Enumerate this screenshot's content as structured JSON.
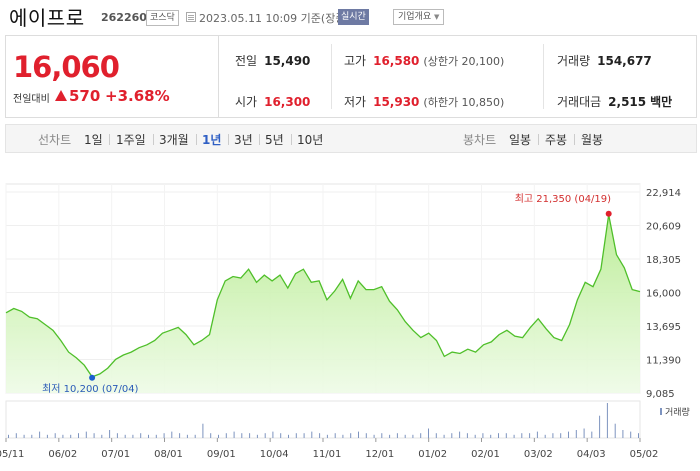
{
  "header": {
    "name": "에이프로",
    "code": "262260",
    "market": "코스닥",
    "datetime": "2023.05.11 10:09 기준(장중)",
    "realtime": "실시간",
    "company_info": "기업개요"
  },
  "price": {
    "current": "16,060",
    "change_label": "전일대비",
    "change_value": "570",
    "change_pct": "+3.68%",
    "up_color": "#e0202d"
  },
  "stats": {
    "prev_close_label": "전일",
    "prev_close": "15,490",
    "high_label": "고가",
    "high": "16,580",
    "upper_limit": "(상한가 20,100)",
    "volume_label": "거래량",
    "volume": "154,677",
    "open_label": "시가",
    "open": "16,300",
    "low_label": "저가",
    "low": "15,930",
    "lower_limit": "(하한가 10,850)",
    "amount_label": "거래대금",
    "amount": "2,515",
    "amount_unit": "백만"
  },
  "tabs": {
    "line_chart": "선차트",
    "periods": [
      "1일",
      "1주일",
      "3개월",
      "1년",
      "3년",
      "5년",
      "10년"
    ],
    "active_period": "1년",
    "candle_chart": "봉차트",
    "candles": [
      "일봉",
      "주봉",
      "월봉"
    ]
  },
  "chart_data": {
    "type": "area",
    "y_ticks": [
      "22,914",
      "20,609",
      "18,305",
      "16,000",
      "13,695",
      "11,390",
      "9,085"
    ],
    "ylim": [
      9085,
      22914
    ],
    "x_labels": [
      "05/11",
      "06/02",
      "07/01",
      "08/01",
      "09/01",
      "10/04",
      "11/01",
      "12/01",
      "01/02",
      "02/01",
      "03/02",
      "04/03",
      "05/02"
    ],
    "series": [
      {
        "values": [
          14600,
          14900,
          14700,
          14300,
          14200,
          13800,
          13400,
          12700,
          11900,
          11500,
          11000,
          10200,
          10400,
          10800,
          11400,
          11700,
          11900,
          12200,
          12400,
          12700,
          13200,
          13400,
          13600,
          13100,
          12400,
          12700,
          13100,
          15500,
          16800,
          17100,
          17000,
          17600,
          16700,
          17200,
          16800,
          17200,
          16300,
          17300,
          17600,
          16700,
          16800,
          15500,
          16100,
          16900,
          15600,
          16800,
          16200,
          16200,
          16400,
          15400,
          14800,
          14000,
          13400,
          12900,
          13200,
          12700,
          11600,
          11900,
          11800,
          12100,
          11900,
          12400,
          12600,
          13100,
          13400,
          13000,
          12900,
          13600,
          14200,
          13500,
          12900,
          12700,
          13800,
          15500,
          16700,
          16400,
          17600,
          21350,
          18600,
          17700,
          16200,
          16060
        ],
        "color": "#4fbf2a"
      }
    ],
    "annotations": {
      "high": "최고 21,350 (04/19)",
      "low": "최저 10,200 (07/04)"
    },
    "volume": {
      "label": "거래량",
      "values": [
        2,
        3,
        2,
        2,
        4,
        2,
        3,
        2,
        2,
        3,
        4,
        3,
        2,
        5,
        3,
        2,
        2,
        3,
        2,
        2,
        3,
        4,
        3,
        2,
        2,
        9,
        3,
        2,
        3,
        4,
        3,
        3,
        2,
        3,
        4,
        3,
        2,
        3,
        3,
        4,
        3,
        2,
        3,
        2,
        3,
        4,
        3,
        2,
        3,
        2,
        3,
        2,
        2,
        3,
        6,
        3,
        2,
        3,
        4,
        3,
        2,
        3,
        2,
        3,
        3,
        2,
        3,
        3,
        4,
        2,
        3,
        3,
        4,
        5,
        6,
        4,
        14,
        22,
        9,
        5,
        4,
        3
      ]
    }
  }
}
